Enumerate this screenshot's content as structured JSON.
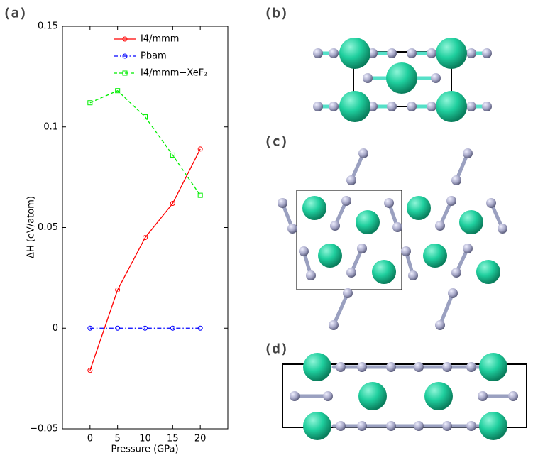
{
  "panels": [
    "(a)",
    "(b)",
    "(c)",
    "(d)"
  ],
  "chart_data": {
    "type": "line",
    "xlabel": "Pressure (GPa)",
    "ylabel": "ΔH (eV/atom)",
    "x": [
      0,
      5,
      10,
      15,
      20
    ],
    "xlim": [
      -5,
      25
    ],
    "xticks": [
      0,
      5,
      10,
      15,
      20
    ],
    "ylim": [
      -0.05,
      0.15
    ],
    "yticks": [
      {
        "value": -0.05,
        "label": "−0.05"
      },
      0,
      0.05,
      0.1,
      0.15
    ],
    "legend": "upper right",
    "series": [
      {
        "name": "I4/mmm",
        "color": "#ff0000",
        "dash": "solid",
        "marker": "circle",
        "values": [
          -0.021,
          0.019,
          0.045,
          0.062,
          0.089
        ]
      },
      {
        "name": "Pbam",
        "color": "#0000ff",
        "dash": "dashdot",
        "marker": "circle",
        "values": [
          0,
          0,
          0,
          0,
          0
        ]
      },
      {
        "name": "I4/mmm−XeF₂",
        "color": "#00ee00",
        "dash": "dashed",
        "marker": "square",
        "values": [
          0.112,
          0.118,
          0.105,
          0.086,
          0.066
        ]
      }
    ]
  }
}
